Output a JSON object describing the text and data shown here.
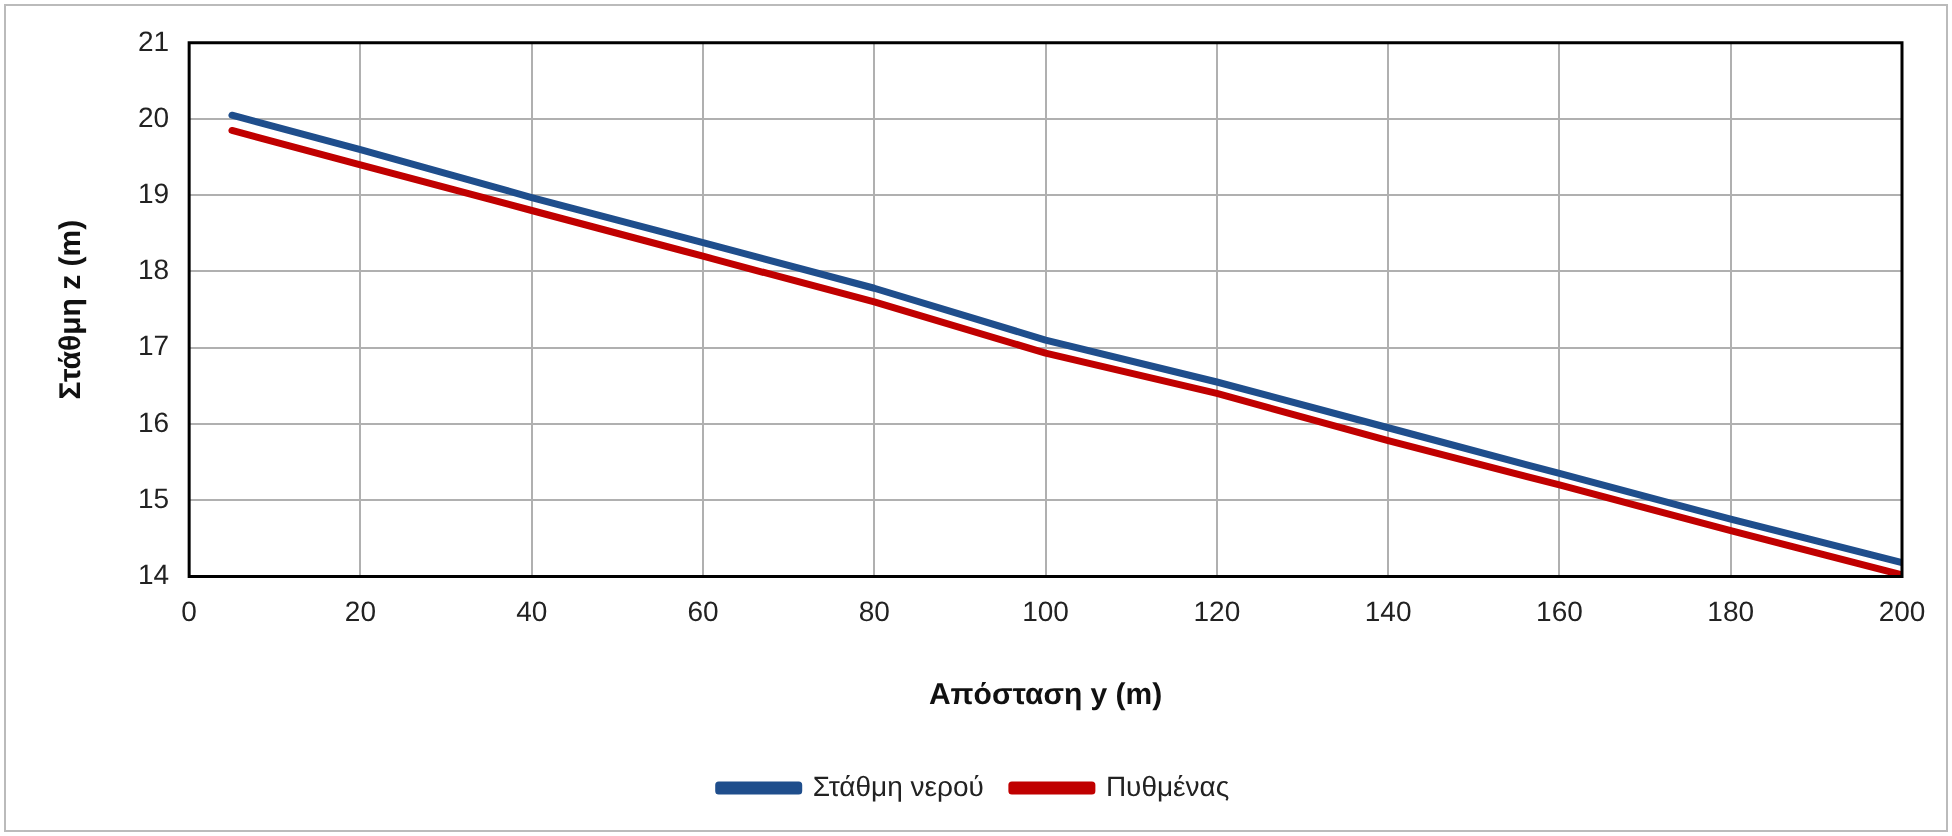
{
  "chart_data": {
    "type": "line",
    "xlabel": "Απόσταση y (m)",
    "ylabel": "Στάθμη z (m)",
    "xlim": [
      0,
      200
    ],
    "xticks": [
      0,
      20,
      40,
      60,
      80,
      100,
      120,
      140,
      160,
      180,
      200
    ],
    "ylim": [
      14,
      21
    ],
    "yticks": [
      14,
      15,
      16,
      17,
      18,
      19,
      20,
      21
    ],
    "grid": true,
    "legend": "bottom",
    "marker": "none",
    "line_style": "solid",
    "series": [
      {
        "name": "Στάθμη νερού",
        "color": "#1f4e8c",
        "x": [
          5,
          20,
          40,
          60,
          80,
          100,
          120,
          140,
          160,
          180,
          200
        ],
        "values": [
          20.05,
          19.6,
          18.97,
          18.38,
          17.78,
          17.1,
          16.55,
          15.95,
          15.35,
          14.75,
          14.18
        ]
      },
      {
        "name": "Πυθμένας",
        "color": "#c00000",
        "x": [
          5,
          20,
          40,
          60,
          80,
          100,
          120,
          140,
          160,
          180,
          200
        ],
        "values": [
          19.85,
          19.4,
          18.8,
          18.2,
          17.6,
          16.93,
          16.4,
          15.78,
          15.2,
          14.6,
          14.02
        ]
      }
    ]
  }
}
